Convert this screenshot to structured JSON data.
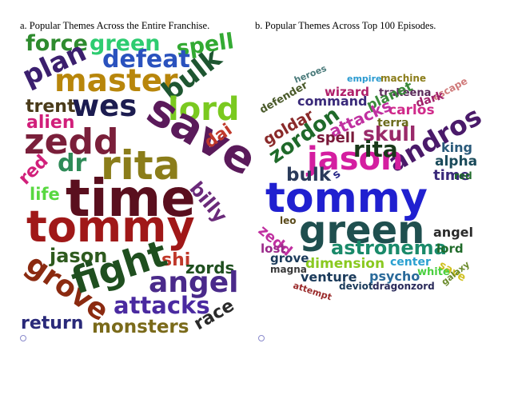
{
  "chart_data": [
    {
      "type": "wordcloud",
      "title": "a. Popular Themes Across the Entire Franchise.",
      "words": [
        {
          "text": "force",
          "color": "#2e8b2e"
        },
        {
          "text": "green",
          "color": "#2ecc71"
        },
        {
          "text": "spell",
          "color": "#33aa33"
        },
        {
          "text": "plan",
          "color": "#3b1f6e"
        },
        {
          "text": "defeat",
          "color": "#2a52be"
        },
        {
          "text": "master",
          "color": "#b8860b"
        },
        {
          "text": "bulk",
          "color": "#1e5631"
        },
        {
          "text": "trent",
          "color": "#4a3b1a"
        },
        {
          "text": "wes",
          "color": "#1c1c50"
        },
        {
          "text": "lord",
          "color": "#7ac920"
        },
        {
          "text": "alien",
          "color": "#d11f7a"
        },
        {
          "text": "save",
          "color": "#5a1a5a"
        },
        {
          "text": "zedd",
          "color": "#7a1f3a"
        },
        {
          "text": "dai",
          "color": "#c0392b"
        },
        {
          "text": "dr",
          "color": "#2e8b57"
        },
        {
          "text": "rita",
          "color": "#8b7d1a"
        },
        {
          "text": "red",
          "color": "#d11f7a"
        },
        {
          "text": "billy",
          "color": "#6a2a7a"
        },
        {
          "text": "life",
          "color": "#58d840"
        },
        {
          "text": "time",
          "color": "#5a0f1e"
        },
        {
          "text": "tommy",
          "color": "#a01818"
        },
        {
          "text": "jason",
          "color": "#2e5a1e"
        },
        {
          "text": "shi",
          "color": "#c0392b"
        },
        {
          "text": "grove",
          "color": "#8b2a10"
        },
        {
          "text": "fight",
          "color": "#1f4f1f"
        },
        {
          "text": "zords",
          "color": "#1f4f1f"
        },
        {
          "text": "angel",
          "color": "#4a2a8a"
        },
        {
          "text": "attacks",
          "color": "#4a2aa0"
        },
        {
          "text": "race",
          "color": "#2a2a2a"
        },
        {
          "text": "return",
          "color": "#2a2a7a"
        },
        {
          "text": "monsters",
          "color": "#7a6a1a"
        }
      ]
    },
    {
      "type": "wordcloud",
      "title": "b. Popular Themes Across Top 100 Episodes.",
      "words": [
        {
          "text": "heroes",
          "color": "#4a7a7a"
        },
        {
          "text": "empire",
          "color": "#2a9ad0"
        },
        {
          "text": "machine",
          "color": "#8b7d1a"
        },
        {
          "text": "defender",
          "color": "#4a5a2a"
        },
        {
          "text": "wizard",
          "color": "#b0206a"
        },
        {
          "text": "trakeena",
          "color": "#5a2a5a"
        },
        {
          "text": "escape",
          "color": "#d07a7a"
        },
        {
          "text": "command",
          "color": "#3a2a7a"
        },
        {
          "text": "planet",
          "color": "#3a8a3a"
        },
        {
          "text": "dark",
          "color": "#a0206a"
        },
        {
          "text": "carlos",
          "color": "#d02a8a"
        },
        {
          "text": "goldar",
          "color": "#8a2a2a"
        },
        {
          "text": "zordon",
          "color": "#1f6a2a"
        },
        {
          "text": "attacks",
          "color": "#c030a0"
        },
        {
          "text": "skull",
          "color": "#9a2a6a"
        },
        {
          "text": "terra",
          "color": "#6a6a1a"
        },
        {
          "text": "andros",
          "color": "#4a1a6a"
        },
        {
          "text": "spell",
          "color": "#7a1a3a"
        },
        {
          "text": "jason",
          "color": "#d41ea0"
        },
        {
          "text": "king",
          "color": "#2a5a7a"
        },
        {
          "text": "rita",
          "color": "#1a3a1a"
        },
        {
          "text": "alpha",
          "color": "#1a4a5a"
        },
        {
          "text": "bulk",
          "color": "#2a3a5a"
        },
        {
          "text": "s",
          "color": "#2a2a8a"
        },
        {
          "text": "time",
          "color": "#3a2a7a"
        },
        {
          "text": "red",
          "color": "#1f6a2a"
        },
        {
          "text": "tommy",
          "color": "#2020d0"
        },
        {
          "text": "leo",
          "color": "#5a4a1a"
        },
        {
          "text": "green",
          "color": "#1f4f4f"
        },
        {
          "text": "zedd",
          "color": "#c030a0"
        },
        {
          "text": "astronema",
          "color": "#1a8a6a"
        },
        {
          "text": "angel",
          "color": "#2a2a2a"
        },
        {
          "text": "lost",
          "color": "#9a2a8a"
        },
        {
          "text": "lord",
          "color": "#1f6a2a"
        },
        {
          "text": "grove",
          "color": "#1a3a5a"
        },
        {
          "text": "dimension",
          "color": "#8ac920"
        },
        {
          "text": "center",
          "color": "#2aa0d0"
        },
        {
          "text": "save",
          "color": "#d0c020"
        },
        {
          "text": "magna",
          "color": "#3a3a3a"
        },
        {
          "text": "venture",
          "color": "#1a3a5a"
        },
        {
          "text": "psycho",
          "color": "#2a6a9a"
        },
        {
          "text": "white",
          "color": "#4ad040"
        },
        {
          "text": "galaxy",
          "color": "#6a8a2a"
        },
        {
          "text": "attempt",
          "color": "#9a2a2a"
        },
        {
          "text": "deviot",
          "color": "#1a3a5a"
        },
        {
          "text": "dragonzord",
          "color": "#2a2a5a"
        }
      ]
    }
  ]
}
